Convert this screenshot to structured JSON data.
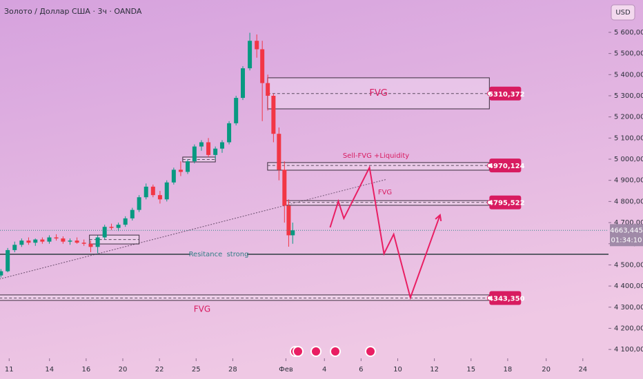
{
  "chart_data": {
    "type": "candlestick",
    "title": "Золото / Доллар США · 3ч · OANDA",
    "currency": "USD",
    "up_color": "#089981",
    "down_color": "#f23645",
    "zone_color": "#d81b60",
    "x": [
      -0.45,
      -0.08,
      0.3,
      0.68,
      1.06,
      1.43,
      1.81,
      2.19,
      2.57,
      2.94,
      3.32,
      3.7,
      4.08,
      4.45,
      4.83,
      5.21,
      5.58,
      5.96,
      6.34,
      6.72,
      7.09,
      7.47,
      7.85,
      8.23,
      8.6,
      8.98,
      9.36,
      9.74,
      10.11,
      10.49,
      10.87,
      11.25,
      11.62,
      12.0,
      12.38,
      12.75,
      13.13,
      13.51,
      13.81,
      14.11,
      14.42,
      14.72,
      15.02,
      15.25,
      15.47
    ],
    "open": [
      4450,
      4470,
      4570,
      4595,
      4615,
      4605,
      4620,
      4610,
      4630,
      4625,
      4610,
      4615,
      4605,
      4600,
      4585,
      4630,
      4680,
      4675,
      4690,
      4720,
      4760,
      4820,
      4870,
      4830,
      4810,
      4890,
      4950,
      4940,
      4990,
      5060,
      5080,
      5020,
      5050,
      5080,
      5170,
      5290,
      5430,
      5560,
      5520,
      5360,
      5300,
      5120,
      4950,
      4780,
      4640
    ],
    "high": [
      4480,
      4580,
      4610,
      4625,
      4630,
      4625,
      4630,
      4640,
      4645,
      4635,
      4625,
      4630,
      4620,
      4615,
      4640,
      4690,
      4695,
      4700,
      4730,
      4770,
      4830,
      4885,
      4880,
      4850,
      4900,
      4960,
      4990,
      5000,
      5070,
      5090,
      5100,
      5060,
      5090,
      5180,
      5300,
      5440,
      5598,
      5590,
      5560,
      5400,
      5310,
      5150,
      4990,
      4810,
      4700
    ],
    "low": [
      4440,
      4465,
      4560,
      4585,
      4595,
      4590,
      4600,
      4600,
      4615,
      4600,
      4595,
      4600,
      4590,
      4560,
      4555,
      4620,
      4665,
      4660,
      4680,
      4710,
      4750,
      4810,
      4820,
      4790,
      4800,
      4880,
      4920,
      4930,
      4980,
      5040,
      5010,
      5000,
      5030,
      5070,
      5160,
      5280,
      5420,
      5480,
      5180,
      5230,
      5080,
      4900,
      4700,
      4586,
      4600
    ],
    "close": [
      4470,
      4570,
      4595,
      4615,
      4605,
      4620,
      4610,
      4630,
      4625,
      4610,
      4615,
      4605,
      4600,
      4585,
      4630,
      4680,
      4675,
      4690,
      4720,
      4760,
      4820,
      4870,
      4830,
      4810,
      4890,
      4950,
      4940,
      4990,
      5060,
      5080,
      5020,
      5050,
      5080,
      5170,
      5290,
      5430,
      5560,
      5520,
      5360,
      5300,
      5120,
      4950,
      4780,
      4640,
      4663.445
    ],
    "xlim": [
      -0.5,
      32.7
    ],
    "xticks": [
      {
        "value": 0,
        "label": "11"
      },
      {
        "value": 2.2,
        "label": "14"
      },
      {
        "value": 4.2,
        "label": "16"
      },
      {
        "value": 6.2,
        "label": "20"
      },
      {
        "value": 8.2,
        "label": "22"
      },
      {
        "value": 10.2,
        "label": "25"
      },
      {
        "value": 12.2,
        "label": "28"
      },
      {
        "value": 15.1,
        "label": "Фев"
      },
      {
        "value": 17.2,
        "label": "4"
      },
      {
        "value": 19.2,
        "label": "6"
      },
      {
        "value": 21.2,
        "label": "10"
      },
      {
        "value": 23.2,
        "label": "12"
      },
      {
        "value": 25.2,
        "label": "15"
      },
      {
        "value": 27.2,
        "label": "18"
      },
      {
        "value": 29.3,
        "label": "20"
      },
      {
        "value": 31.3,
        "label": "24"
      }
    ],
    "ylim": [
      4058,
      5753
    ],
    "yticks": [
      {
        "value": 4100,
        "label": "4 100,000"
      },
      {
        "value": 4200,
        "label": "4 200,000"
      },
      {
        "value": 4300,
        "label": "4 300,000"
      },
      {
        "value": 4400,
        "label": "4 400,000"
      },
      {
        "value": 4500,
        "label": "4 500,000"
      },
      {
        "value": 4600,
        "label": "4 600,000"
      },
      {
        "value": 4700,
        "label": "4 700,000"
      },
      {
        "value": 4800,
        "label": "4 800,000"
      },
      {
        "value": 4900,
        "label": "4 900,000"
      },
      {
        "value": 5000,
        "label": "5 000,000"
      },
      {
        "value": 5100,
        "label": "5 100,000"
      },
      {
        "value": 5200,
        "label": "5 200,000"
      },
      {
        "value": 5300,
        "label": "5 300,000"
      },
      {
        "value": 5400,
        "label": "5 400,000"
      },
      {
        "value": 5500,
        "label": "5 500,000"
      },
      {
        "value": 5600,
        "label": "5 600,000"
      }
    ],
    "last_price": {
      "value": 4663.445,
      "label": "4663,445"
    },
    "countdown": "01:34:10",
    "zones": [
      {
        "x": [
          14.1,
          26.2
        ],
        "y": [
          5238,
          5385
        ],
        "label": "FVG",
        "level": {
          "value": 5310.372,
          "label": "5310,372"
        }
      },
      {
        "x": [
          14.1,
          26.2
        ],
        "y": [
          4948,
          4984
        ],
        "label": "Sell-FVG +Liquidity",
        "level": {
          "value": 4970.124,
          "label": "4970,124"
        }
      },
      {
        "x": [
          14.95,
          26.2
        ],
        "y": [
          4782,
          4804
        ],
        "label": "FVG",
        "level": {
          "value": 4795.522,
          "label": "4795,522"
        }
      },
      {
        "x": [
          -0.53,
          26.2
        ],
        "y": [
          4332,
          4358
        ],
        "label": "FVG",
        "level": {
          "value": 4343.35,
          "label": "4343,350"
        }
      },
      {
        "x": [
          9.47,
          11.25
        ],
        "y": [
          4987,
          5010
        ]
      },
      {
        "x": [
          4.38,
          7.09
        ],
        "y": [
          4599,
          4641
        ]
      }
    ],
    "resistance": {
      "value": 4550,
      "label": "Resitance  strong"
    },
    "trendline": {
      "x": [
        -0.53,
        20.6
      ],
      "y": [
        4433,
        4905
      ]
    },
    "projection": {
      "x": [
        17.51,
        17.96,
        18.26,
        19.66,
        20.45,
        20.98,
        21.89,
        23.51
      ],
      "y": [
        4677,
        4801,
        4720,
        4961,
        4553,
        4645,
        4345,
        4736
      ]
    }
  }
}
